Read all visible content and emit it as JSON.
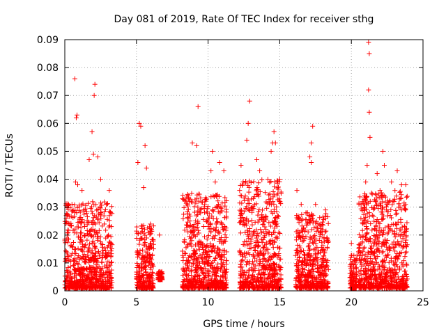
{
  "chart_data": {
    "type": "scatter",
    "title": "Day 081 of 2019, Rate Of TEC Index for receiver sthg",
    "xlabel": "GPS time / hours",
    "ylabel": "ROTI / TECUs",
    "xlim": [
      0,
      25
    ],
    "ylim": [
      0,
      0.09
    ],
    "x_ticks": [
      0,
      5,
      10,
      15,
      20,
      25
    ],
    "y_ticks": [
      0,
      0.01,
      0.02,
      0.03,
      0.04,
      0.05,
      0.06,
      0.07,
      0.08,
      0.09
    ],
    "x_tick_labels": [
      "0",
      "5",
      "10",
      "15",
      "20",
      "25"
    ],
    "y_tick_labels": [
      "0",
      "0.01",
      "0.02",
      "0.03",
      "0.04",
      "0.05",
      "0.06",
      "0.07",
      "0.08",
      "0.09"
    ],
    "grid": true,
    "marker": "+",
    "series_color": "#ff0000",
    "series": [
      {
        "name": "ROTI",
        "points": [
          [
            0.7,
            0.076
          ],
          [
            0.8,
            0.062
          ],
          [
            0.85,
            0.063
          ],
          [
            0.75,
            0.039
          ],
          [
            0.9,
            0.038
          ],
          [
            1.9,
            0.057
          ],
          [
            2.1,
            0.074
          ],
          [
            2.05,
            0.07
          ],
          [
            2.0,
            0.049
          ],
          [
            2.3,
            0.048
          ],
          [
            0.1,
            0.027
          ],
          [
            0.3,
            0.024
          ],
          [
            0.5,
            0.031
          ],
          [
            1.2,
            0.036
          ],
          [
            1.7,
            0.047
          ],
          [
            2.5,
            0.04
          ],
          [
            3.1,
            0.036
          ],
          [
            3.2,
            0.028
          ],
          [
            5.1,
            0.046
          ],
          [
            5.2,
            0.06
          ],
          [
            5.3,
            0.059
          ],
          [
            5.6,
            0.052
          ],
          [
            5.7,
            0.044
          ],
          [
            5.5,
            0.037
          ],
          [
            6.6,
            0.02
          ],
          [
            6.5,
            0.006
          ],
          [
            8.9,
            0.053
          ],
          [
            9.3,
            0.066
          ],
          [
            9.2,
            0.052
          ],
          [
            10.3,
            0.05
          ],
          [
            10.2,
            0.043
          ],
          [
            10.5,
            0.039
          ],
          [
            10.8,
            0.046
          ],
          [
            11.1,
            0.043
          ],
          [
            8.7,
            0.032
          ],
          [
            12.3,
            0.045
          ],
          [
            12.7,
            0.054
          ],
          [
            12.8,
            0.06
          ],
          [
            12.9,
            0.068
          ],
          [
            13.4,
            0.047
          ],
          [
            13.6,
            0.043
          ],
          [
            14.6,
            0.057
          ],
          [
            14.5,
            0.053
          ],
          [
            14.7,
            0.053
          ],
          [
            14.4,
            0.05
          ],
          [
            12.2,
            0.036
          ],
          [
            15.0,
            0.04
          ],
          [
            16.2,
            0.036
          ],
          [
            16.5,
            0.031
          ],
          [
            17.3,
            0.059
          ],
          [
            17.2,
            0.053
          ],
          [
            17.1,
            0.048
          ],
          [
            17.2,
            0.046
          ],
          [
            17.5,
            0.031
          ],
          [
            18.2,
            0.029
          ],
          [
            20.0,
            0.017
          ],
          [
            20.5,
            0.014
          ],
          [
            20.9,
            0.03
          ],
          [
            21.2,
            0.089
          ],
          [
            21.25,
            0.085
          ],
          [
            21.2,
            0.072
          ],
          [
            21.25,
            0.064
          ],
          [
            21.3,
            0.055
          ],
          [
            21.1,
            0.045
          ],
          [
            21.0,
            0.039
          ],
          [
            22.2,
            0.05
          ],
          [
            21.8,
            0.042
          ],
          [
            22.3,
            0.045
          ],
          [
            22.8,
            0.039
          ],
          [
            23.2,
            0.043
          ],
          [
            23.5,
            0.038
          ],
          [
            23.8,
            0.038
          ],
          [
            22.0,
            0.036
          ]
        ],
        "dense_clusters": [
          {
            "x_range": [
              0.0,
              3.3
            ],
            "y_range": [
              0.001,
              0.032
            ]
          },
          {
            "x_range": [
              5.0,
              6.2
            ],
            "y_range": [
              0.001,
              0.024
            ]
          },
          {
            "x_range": [
              6.5,
              6.8
            ],
            "y_range": [
              0.004,
              0.007
            ]
          },
          {
            "x_range": [
              8.2,
              11.3
            ],
            "y_range": [
              0.001,
              0.035
            ]
          },
          {
            "x_range": [
              12.2,
              15.1
            ],
            "y_range": [
              0.001,
              0.04
            ]
          },
          {
            "x_range": [
              16.1,
              18.4
            ],
            "y_range": [
              0.001,
              0.028
            ]
          },
          {
            "x_range": [
              19.9,
              20.4
            ],
            "y_range": [
              0.001,
              0.013
            ]
          },
          {
            "x_range": [
              20.5,
              23.9
            ],
            "y_range": [
              0.001,
              0.036
            ]
          }
        ]
      }
    ]
  }
}
